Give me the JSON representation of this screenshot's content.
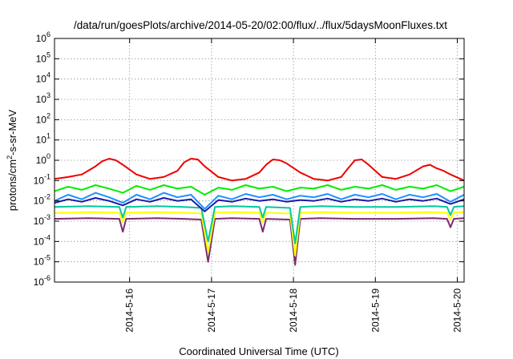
{
  "chart_data": {
    "type": "line",
    "title": "/data/run/goesPlots/archive/2014-05-20/02:00/flux/../flux/5daysMoonFluxes.txt",
    "xlabel": "Coordinated Universal Time (UTC)",
    "ylabel": {
      "base": "protons/cm",
      "sup": "2",
      "rest": "-s-sr-MeV"
    },
    "yscale": "log",
    "xlim": [
      "2014-05-15T02:00",
      "2014-05-20T02:00"
    ],
    "ylim": [
      1e-06,
      1000000.0
    ],
    "grid": true,
    "x_ticks": [
      {
        "label": "2014-5-16",
        "date": "2014-05-16"
      },
      {
        "label": "2014-5-17",
        "date": "2014-05-17"
      },
      {
        "label": "2014-5-18",
        "date": "2014-05-18"
      },
      {
        "label": "2014-5-19",
        "date": "2014-05-19"
      },
      {
        "label": "2014-5-20",
        "date": "2014-05-20"
      }
    ],
    "y_ticks": [
      {
        "base": "10",
        "exp": "-6",
        "value": 1e-06
      },
      {
        "base": "10",
        "exp": "-5",
        "value": 1e-05
      },
      {
        "base": "10",
        "exp": "-4",
        "value": 0.0001
      },
      {
        "base": "10",
        "exp": "-3",
        "value": 0.001
      },
      {
        "base": "10",
        "exp": "-2",
        "value": 0.01
      },
      {
        "base": "10",
        "exp": "-1",
        "value": 0.1
      },
      {
        "base": "10",
        "exp": "0",
        "value": 1
      },
      {
        "base": "10",
        "exp": "1",
        "value": 10.0
      },
      {
        "base": "10",
        "exp": "2",
        "value": 100.0
      },
      {
        "base": "10",
        "exp": "3",
        "value": 1000.0
      },
      {
        "base": "10",
        "exp": "4",
        "value": 10000.0
      },
      {
        "base": "10",
        "exp": "5",
        "value": 100000.0
      },
      {
        "base": "10",
        "exp": "6",
        "value": 1000000.0
      }
    ],
    "series": [
      {
        "color": "#7b2d6e",
        "x": [
          "2014-05-15T02:00",
          "2014-05-15T12:00",
          "2014-05-15T21:00",
          "2014-05-15T22:00",
          "2014-05-15T23:00",
          "2014-05-16T08:00",
          "2014-05-16T16:00",
          "2014-05-16T21:00",
          "2014-05-16T23:00",
          "2014-05-17T01:00",
          "2014-05-17T06:00",
          "2014-05-17T14:00",
          "2014-05-17T15:00",
          "2014-05-17T16:00",
          "2014-05-17T23:00",
          "2014-05-18T00:30",
          "2014-05-18T02:00",
          "2014-05-18T08:00",
          "2014-05-18T18:00",
          "2014-05-19T06:00",
          "2014-05-19T17:00",
          "2014-05-19T21:00",
          "2014-05-19T22:00",
          "2014-05-19T23:00",
          "2014-05-20T02:00"
        ],
        "y": [
          0.0013,
          0.0014,
          0.0013,
          0.0003,
          0.0013,
          0.0014,
          0.0013,
          0.0012,
          1e-05,
          0.0013,
          0.0014,
          0.0013,
          0.0003,
          0.0013,
          0.0012,
          7e-06,
          0.0013,
          0.0014,
          0.0013,
          0.0013,
          0.0014,
          0.0013,
          0.0005,
          0.0013,
          0.0014
        ]
      },
      {
        "color": "#ffff00",
        "x": [
          "2014-05-15T02:00",
          "2014-05-15T12:00",
          "2014-05-15T21:00",
          "2014-05-15T22:00",
          "2014-05-15T23:00",
          "2014-05-16T08:00",
          "2014-05-16T16:00",
          "2014-05-16T21:00",
          "2014-05-16T23:00",
          "2014-05-17T01:00",
          "2014-05-17T06:00",
          "2014-05-17T14:00",
          "2014-05-17T15:00",
          "2014-05-17T16:00",
          "2014-05-17T23:00",
          "2014-05-18T00:30",
          "2014-05-18T02:00",
          "2014-05-18T08:00",
          "2014-05-18T18:00",
          "2014-05-19T06:00",
          "2014-05-19T17:00",
          "2014-05-19T21:00",
          "2014-05-19T22:00",
          "2014-05-19T23:00",
          "2014-05-20T02:00"
        ],
        "y": [
          0.0025,
          0.0028,
          0.0026,
          0.0009,
          0.0026,
          0.0028,
          0.0026,
          0.0024,
          3e-05,
          0.0026,
          0.0028,
          0.0026,
          0.0009,
          0.0026,
          0.0024,
          2e-05,
          0.0026,
          0.0028,
          0.0026,
          0.0026,
          0.0028,
          0.0026,
          0.0012,
          0.0026,
          0.0028
        ]
      },
      {
        "color": "#00c8a0",
        "x": [
          "2014-05-15T02:00",
          "2014-05-15T12:00",
          "2014-05-15T21:00",
          "2014-05-15T22:00",
          "2014-05-15T23:00",
          "2014-05-16T08:00",
          "2014-05-16T16:00",
          "2014-05-16T21:00",
          "2014-05-16T23:00",
          "2014-05-17T01:00",
          "2014-05-17T06:00",
          "2014-05-17T14:00",
          "2014-05-17T15:00",
          "2014-05-17T16:00",
          "2014-05-17T23:00",
          "2014-05-18T00:30",
          "2014-05-18T02:00",
          "2014-05-18T08:00",
          "2014-05-18T18:00",
          "2014-05-19T06:00",
          "2014-05-19T17:00",
          "2014-05-19T21:00",
          "2014-05-19T22:00",
          "2014-05-19T23:00",
          "2014-05-20T02:00"
        ],
        "y": [
          0.005,
          0.0055,
          0.005,
          0.0015,
          0.005,
          0.0055,
          0.005,
          0.0045,
          0.0001,
          0.005,
          0.0055,
          0.005,
          0.0015,
          0.005,
          0.0045,
          8e-05,
          0.005,
          0.0055,
          0.005,
          0.005,
          0.0055,
          0.005,
          0.002,
          0.005,
          0.0055
        ]
      },
      {
        "color": "#1e90ff",
        "x": [
          "2014-05-15T02:00",
          "2014-05-15T06:00",
          "2014-05-15T10:00",
          "2014-05-15T14:00",
          "2014-05-15T18:00",
          "2014-05-15T22:00",
          "2014-05-16T02:00",
          "2014-05-16T06:00",
          "2014-05-16T10:00",
          "2014-05-16T14:00",
          "2014-05-16T18:00",
          "2014-05-16T22:00",
          "2014-05-17T02:00",
          "2014-05-17T06:00",
          "2014-05-17T10:00",
          "2014-05-17T14:00",
          "2014-05-17T18:00",
          "2014-05-17T22:00",
          "2014-05-18T02:00",
          "2014-05-18T06:00",
          "2014-05-18T10:00",
          "2014-05-18T14:00",
          "2014-05-18T18:00",
          "2014-05-18T22:00",
          "2014-05-19T02:00",
          "2014-05-19T06:00",
          "2014-05-19T10:00",
          "2014-05-19T14:00",
          "2014-05-19T18:00",
          "2014-05-19T22:00",
          "2014-05-20T02:00"
        ],
        "y": [
          0.01,
          0.02,
          0.012,
          0.025,
          0.015,
          0.008,
          0.02,
          0.012,
          0.025,
          0.015,
          0.02,
          0.004,
          0.018,
          0.012,
          0.022,
          0.015,
          0.02,
          0.012,
          0.018,
          0.015,
          0.022,
          0.012,
          0.02,
          0.015,
          0.022,
          0.012,
          0.02,
          0.015,
          0.022,
          0.009,
          0.02
        ]
      },
      {
        "color": "#1a1aa8",
        "x": [
          "2014-05-15T02:00",
          "2014-05-15T06:00",
          "2014-05-15T10:00",
          "2014-05-15T14:00",
          "2014-05-15T18:00",
          "2014-05-15T22:00",
          "2014-05-16T02:00",
          "2014-05-16T06:00",
          "2014-05-16T10:00",
          "2014-05-16T14:00",
          "2014-05-16T18:00",
          "2014-05-16T22:00",
          "2014-05-17T02:00",
          "2014-05-17T06:00",
          "2014-05-17T10:00",
          "2014-05-17T14:00",
          "2014-05-17T18:00",
          "2014-05-17T22:00",
          "2014-05-18T02:00",
          "2014-05-18T06:00",
          "2014-05-18T10:00",
          "2014-05-18T14:00",
          "2014-05-18T18:00",
          "2014-05-18T22:00",
          "2014-05-19T02:00",
          "2014-05-19T06:00",
          "2014-05-19T10:00",
          "2014-05-19T14:00",
          "2014-05-19T18:00",
          "2014-05-19T22:00",
          "2014-05-20T02:00"
        ],
        "y": [
          0.008,
          0.012,
          0.009,
          0.014,
          0.01,
          0.006,
          0.012,
          0.009,
          0.014,
          0.01,
          0.012,
          0.003,
          0.011,
          0.009,
          0.013,
          0.01,
          0.012,
          0.009,
          0.011,
          0.01,
          0.013,
          0.009,
          0.012,
          0.01,
          0.013,
          0.009,
          0.012,
          0.01,
          0.013,
          0.007,
          0.012
        ]
      },
      {
        "color": "#00ee00",
        "x": [
          "2014-05-15T02:00",
          "2014-05-15T06:00",
          "2014-05-15T10:00",
          "2014-05-15T14:00",
          "2014-05-15T18:00",
          "2014-05-15T22:00",
          "2014-05-16T02:00",
          "2014-05-16T06:00",
          "2014-05-16T10:00",
          "2014-05-16T14:00",
          "2014-05-16T18:00",
          "2014-05-16T22:00",
          "2014-05-17T02:00",
          "2014-05-17T06:00",
          "2014-05-17T10:00",
          "2014-05-17T14:00",
          "2014-05-17T18:00",
          "2014-05-17T22:00",
          "2014-05-18T02:00",
          "2014-05-18T06:00",
          "2014-05-18T10:00",
          "2014-05-18T14:00",
          "2014-05-18T18:00",
          "2014-05-18T22:00",
          "2014-05-19T02:00",
          "2014-05-19T06:00",
          "2014-05-19T10:00",
          "2014-05-19T14:00",
          "2014-05-19T18:00",
          "2014-05-19T22:00",
          "2014-05-20T02:00"
        ],
        "y": [
          0.03,
          0.05,
          0.035,
          0.06,
          0.04,
          0.025,
          0.055,
          0.035,
          0.06,
          0.04,
          0.05,
          0.02,
          0.045,
          0.035,
          0.06,
          0.04,
          0.05,
          0.03,
          0.045,
          0.04,
          0.06,
          0.035,
          0.05,
          0.04,
          0.06,
          0.035,
          0.05,
          0.04,
          0.06,
          0.03,
          0.05
        ]
      },
      {
        "color": "#ee0000",
        "x": [
          "2014-05-15T02:00",
          "2014-05-15T06:00",
          "2014-05-15T10:00",
          "2014-05-15T14:00",
          "2014-05-15T16:00",
          "2014-05-15T18:00",
          "2014-05-15T20:00",
          "2014-05-15T22:00",
          "2014-05-16T02:00",
          "2014-05-16T06:00",
          "2014-05-16T10:00",
          "2014-05-16T14:00",
          "2014-05-16T16:00",
          "2014-05-16T18:00",
          "2014-05-16T20:00",
          "2014-05-16T22:00",
          "2014-05-17T02:00",
          "2014-05-17T06:00",
          "2014-05-17T10:00",
          "2014-05-17T14:00",
          "2014-05-17T16:00",
          "2014-05-17T18:00",
          "2014-05-17T20:00",
          "2014-05-17T22:00",
          "2014-05-18T02:00",
          "2014-05-18T06:00",
          "2014-05-18T10:00",
          "2014-05-18T14:00",
          "2014-05-18T16:00",
          "2014-05-18T18:00",
          "2014-05-18T20:00",
          "2014-05-18T22:00",
          "2014-05-19T02:00",
          "2014-05-19T06:00",
          "2014-05-19T10:00",
          "2014-05-19T14:00",
          "2014-05-19T16:00",
          "2014-05-19T18:00",
          "2014-05-19T20:00",
          "2014-05-19T22:00",
          "2014-05-20T02:00"
        ],
        "y": [
          0.12,
          0.15,
          0.2,
          0.5,
          0.9,
          1.2,
          1.0,
          0.6,
          0.2,
          0.12,
          0.15,
          0.3,
          0.8,
          1.2,
          1.1,
          0.5,
          0.15,
          0.1,
          0.12,
          0.25,
          0.6,
          1.1,
          1.0,
          0.7,
          0.25,
          0.12,
          0.1,
          0.15,
          0.4,
          1.0,
          1.1,
          0.6,
          0.15,
          0.12,
          0.2,
          0.5,
          0.6,
          0.4,
          0.3,
          0.2,
          0.1
        ]
      }
    ]
  }
}
